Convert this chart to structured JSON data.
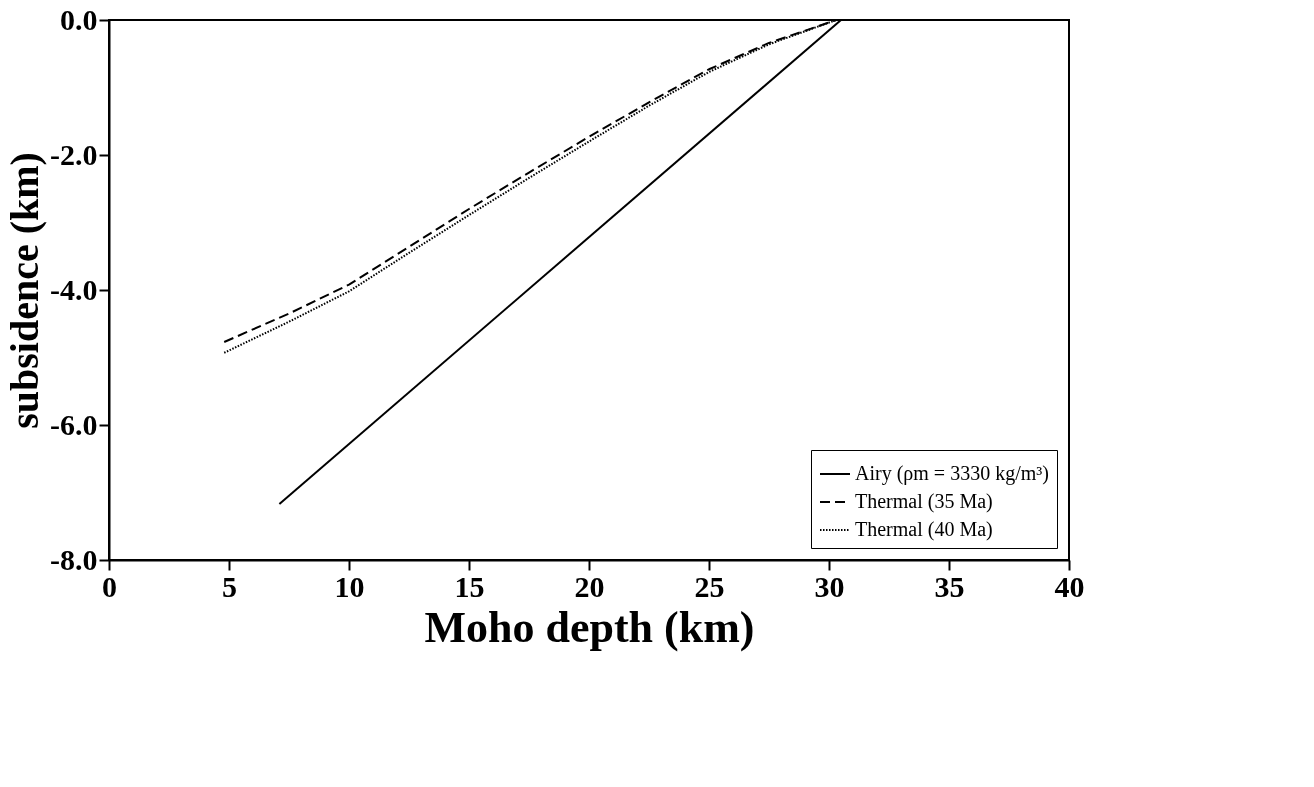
{
  "chart_data": {
    "type": "line",
    "xlabel": "Moho depth (km)",
    "ylabel": "subsidence (km)",
    "xlim": [
      0,
      40
    ],
    "ylim": [
      -8,
      0
    ],
    "xticks": [
      0,
      5,
      10,
      15,
      20,
      25,
      30,
      35,
      40
    ],
    "yticks": [
      {
        "value": -8,
        "label": "-8.0"
      },
      {
        "value": -6,
        "label": "-6.0"
      },
      {
        "value": -4,
        "label": "-4.0"
      },
      {
        "value": -2,
        "label": "-2.0"
      },
      {
        "value": 0,
        "label": "0.0"
      }
    ],
    "grid": false,
    "legend": "bottom right",
    "marker": "none",
    "series": [
      {
        "name": "Airy (ρm = 3330 kg/m³)",
        "color": "#000000",
        "line_style": "solid",
        "x": [
          7.1,
          30.5
        ],
        "values": [
          -7.17,
          0
        ]
      },
      {
        "name": "Thermal (35 Ma)",
        "color": "#000000",
        "line_style": "dashed",
        "x": [
          4.8,
          7.5,
          10,
          12.5,
          15,
          17.5,
          20,
          22.5,
          25,
          27.5,
          30.3
        ],
        "values": [
          -4.77,
          -4.35,
          -3.92,
          -3.36,
          -2.8,
          -2.26,
          -1.73,
          -1.22,
          -0.73,
          -0.34,
          0
        ]
      },
      {
        "name": "Thermal (40 Ma)",
        "color": "#000000",
        "line_style": "dotted",
        "x": [
          4.8,
          7.5,
          10,
          12.5,
          15,
          17.5,
          20,
          22.5,
          25,
          27.5,
          30.3
        ],
        "values": [
          -4.93,
          -4.47,
          -4.02,
          -3.45,
          -2.89,
          -2.34,
          -1.8,
          -1.27,
          -0.77,
          -0.36,
          0
        ]
      }
    ]
  }
}
